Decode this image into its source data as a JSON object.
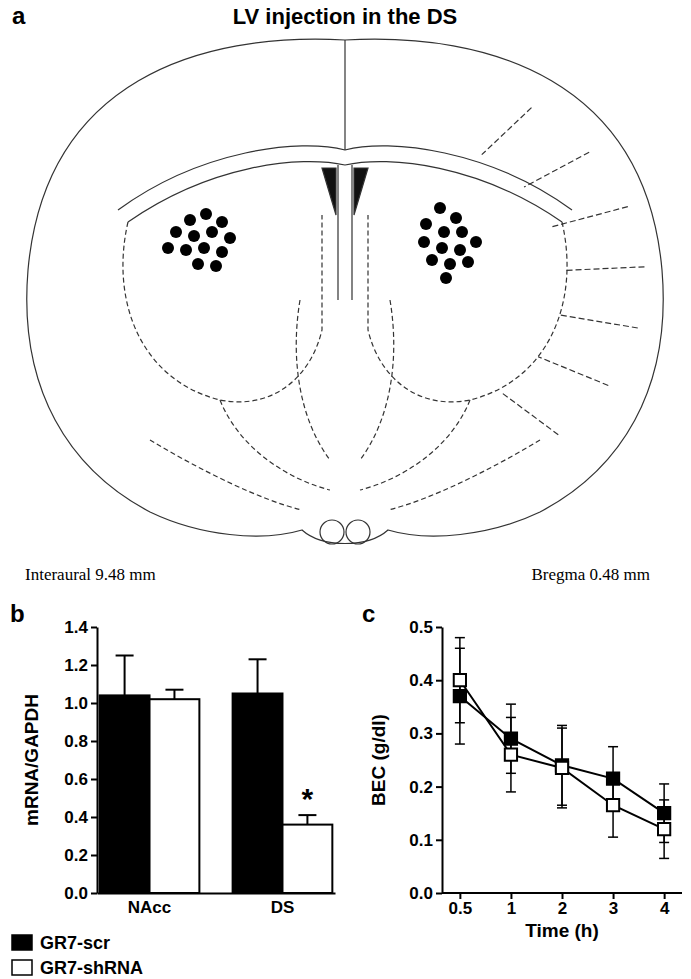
{
  "panel_labels": [
    "a",
    "b",
    "c"
  ],
  "diagram": {
    "title": "LV injection in the DS",
    "labels": [
      "Interaural 9.48 mm",
      "Bregma 0.48 mm"
    ]
  },
  "chart_data": [
    {
      "type": "bar",
      "y_label": "mRNA/GAPDH",
      "categories": [
        "NAcc",
        "DS"
      ],
      "series": [
        {
          "name": "GR7-scr",
          "color": "#000000",
          "values": [
            1.04,
            1.05
          ],
          "errors": [
            0.21,
            0.18
          ]
        },
        {
          "name": "GR7-shRNA",
          "color": "#ffffff",
          "values": [
            1.02,
            0.36
          ],
          "errors": [
            0.05,
            0.05
          ]
        }
      ],
      "ylim": [
        0,
        1.4
      ],
      "yticks": [
        {
          "value": 0,
          "label": "0.0"
        },
        0.2,
        0.4,
        0.6,
        0.8,
        {
          "value": 1,
          "label": "1.0"
        },
        1.2,
        1.4
      ],
      "annotations": [
        {
          "text": "*",
          "category": "DS",
          "series": "GR7-shRNA"
        }
      ],
      "legend": "bottom"
    },
    {
      "type": "line",
      "x_label": "Time (h)",
      "y_label": "BEC (g/dl)",
      "categories": [
        "0.5",
        "1",
        "2",
        "3",
        "4"
      ],
      "series": [
        {
          "name": "GR7-scr",
          "color": "#000000",
          "marker": "square",
          "values": [
            0.37,
            0.29,
            0.24,
            0.215,
            0.15
          ],
          "errors": [
            0.09,
            0.065,
            0.075,
            0.06,
            0.055
          ]
        },
        {
          "name": "GR7-shRNA",
          "color": "#ffffff",
          "marker": "square",
          "values": [
            0.4,
            0.26,
            0.235,
            0.165,
            0.12
          ],
          "errors": [
            0.08,
            0.07,
            0.075,
            0.06,
            0.055
          ]
        }
      ],
      "ylim": [
        0,
        0.5
      ],
      "yticks": [
        {
          "value": 0,
          "label": "0.0"
        },
        0.1,
        0.2,
        0.3,
        0.4,
        0.5
      ]
    }
  ]
}
